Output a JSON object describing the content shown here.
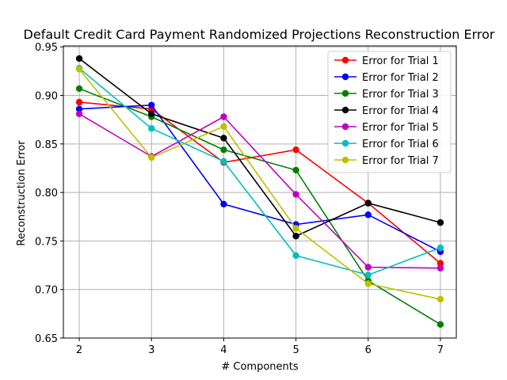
{
  "chart_data": {
    "type": "line",
    "title": "Default Credit Card Payment Randomized Projections Reconstruction Error",
    "xlabel": "# Components",
    "ylabel": "Reconstruction Error",
    "x": [
      2,
      3,
      4,
      5,
      6,
      7
    ],
    "xlim": [
      1.78,
      7.22
    ],
    "ylim": [
      0.65,
      0.951
    ],
    "xticks": [
      "2",
      "3",
      "4",
      "5",
      "6",
      "7"
    ],
    "yticks": [
      "0.65",
      "0.70",
      "0.75",
      "0.80",
      "0.85",
      "0.90",
      "0.95"
    ],
    "grid": true,
    "legend_position": "top-right",
    "series": [
      {
        "name": "Error for Trial 1",
        "color": "#ff0000",
        "values": [
          0.893,
          0.886,
          0.831,
          0.844,
          0.789,
          0.727
        ]
      },
      {
        "name": "Error for Trial 2",
        "color": "#0000ff",
        "values": [
          0.886,
          0.89,
          0.788,
          0.767,
          0.777,
          0.739
        ]
      },
      {
        "name": "Error for Trial 3",
        "color": "#008000",
        "values": [
          0.907,
          0.878,
          0.844,
          0.823,
          0.709,
          0.664
        ]
      },
      {
        "name": "Error for Trial 4",
        "color": "#000000",
        "values": [
          0.938,
          0.881,
          0.856,
          0.755,
          0.789,
          0.769
        ]
      },
      {
        "name": "Error for Trial 5",
        "color": "#bf00bf",
        "values": [
          0.881,
          0.837,
          0.878,
          0.798,
          0.723,
          0.722
        ]
      },
      {
        "name": "Error for Trial 6",
        "color": "#00bfbf",
        "values": [
          0.928,
          0.866,
          0.832,
          0.735,
          0.715,
          0.743
        ]
      },
      {
        "name": "Error for Trial 7",
        "color": "#bfbf00",
        "values": [
          0.927,
          0.836,
          0.868,
          0.763,
          0.706,
          0.69
        ]
      }
    ]
  }
}
